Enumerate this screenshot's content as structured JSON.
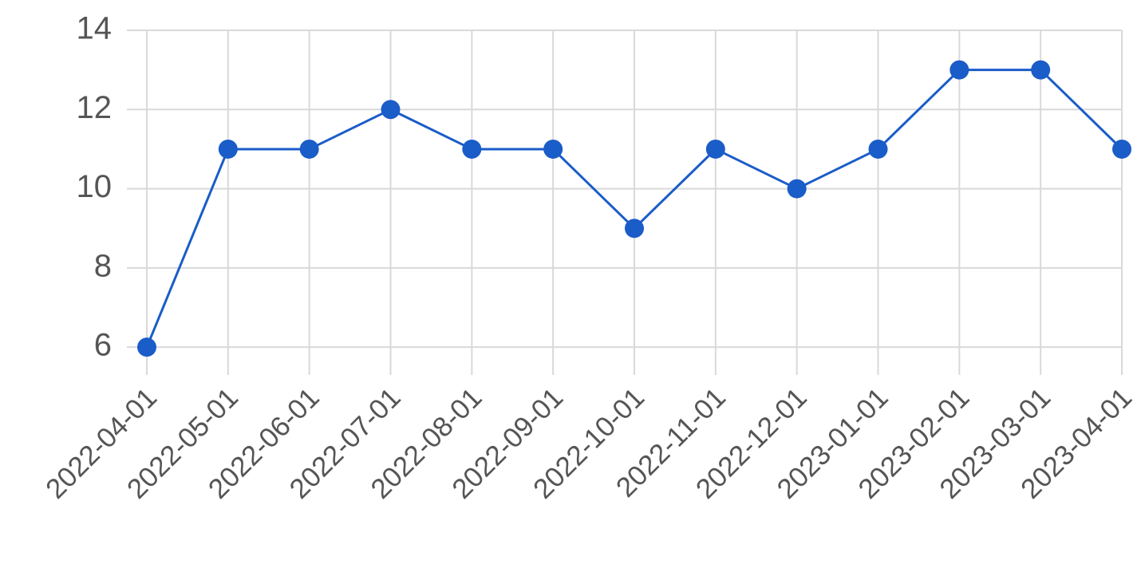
{
  "chart_data": {
    "type": "line",
    "title": "",
    "xlabel": "",
    "ylabel": "",
    "x": [
      "2022-04-01",
      "2022-05-01",
      "2022-06-01",
      "2022-07-01",
      "2022-08-01",
      "2022-09-01",
      "2022-10-01",
      "2022-11-01",
      "2022-12-01",
      "2023-01-01",
      "2023-02-01",
      "2023-03-01",
      "2023-04-01"
    ],
    "series": [
      {
        "values": [
          6,
          11,
          11,
          12,
          11,
          11,
          9,
          11,
          10,
          11,
          13,
          13,
          11
        ],
        "color": "#1a5cc8"
      }
    ],
    "yticks": [
      6,
      8,
      10,
      12,
      14
    ],
    "ylim": [
      5.5,
      14
    ],
    "grid": true,
    "legend": "none"
  }
}
